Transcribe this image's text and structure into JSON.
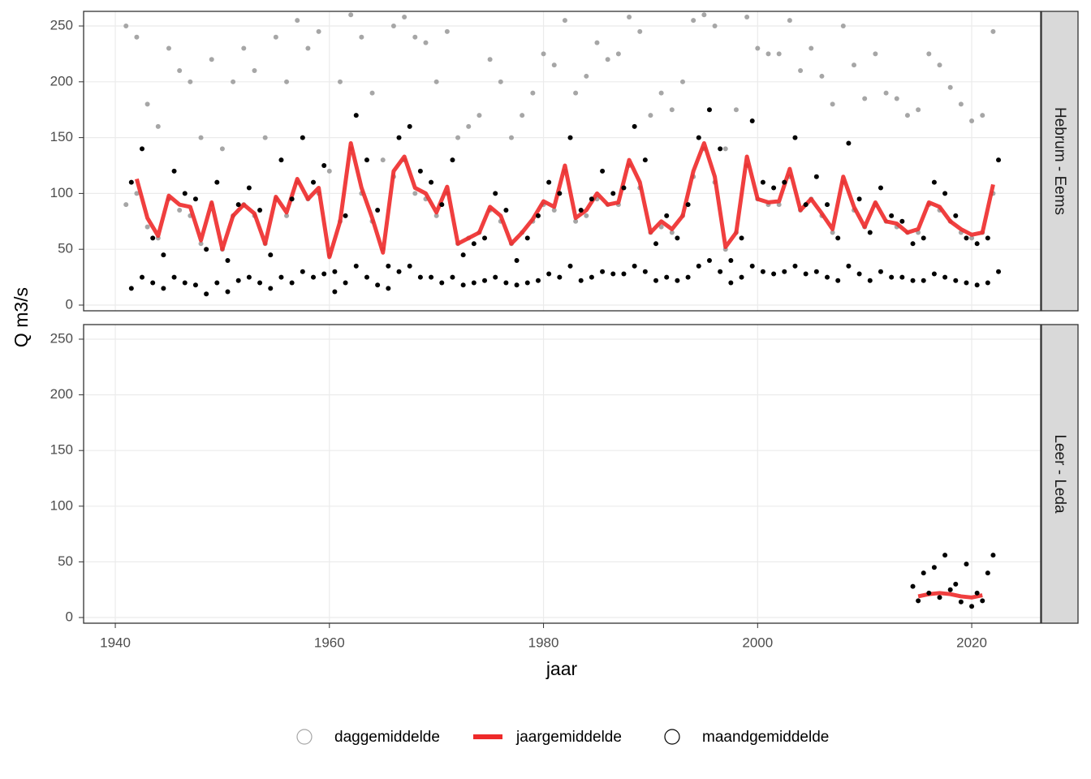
{
  "chart_data": {
    "type": "scatter",
    "xlabel": "jaar",
    "ylabel": "Q m3/s",
    "xlim": [
      1937.04,
      2026.44
    ],
    "ylim": [
      -5.1,
      263.1
    ],
    "xticks": [
      1940,
      1960,
      1980,
      2000,
      2020
    ],
    "yticks": [
      0,
      50,
      100,
      150,
      200,
      250
    ],
    "grid": true,
    "legend": "bottom",
    "series": [
      {
        "name": "daggemiddelde",
        "color": "#a6a6a6",
        "mark": "point"
      },
      {
        "name": "jaargemiddelde",
        "color": "#ee2a2a",
        "mark": "line"
      },
      {
        "name": "maandgemiddelde",
        "color": "#000000",
        "mark": "point"
      }
    ],
    "facets": [
      {
        "label": "Hebrum - Eems",
        "series": [
          {
            "x": [
              1941,
              1941,
              1942,
              1942,
              1943,
              1943,
              1944,
              1944,
              1945,
              1945,
              1946,
              1946,
              1947,
              1947,
              1948,
              1948,
              1949,
              1949,
              1950,
              1950,
              1951,
              1951,
              1952,
              1952,
              1953,
              1953,
              1954,
              1954,
              1955,
              1955,
              1956,
              1956,
              1957,
              1957,
              1958,
              1958,
              1959,
              1959,
              1960,
              1960,
              1961,
              1961,
              1962,
              1962,
              1963,
              1963,
              1964,
              1964,
              1965,
              1965,
              1966,
              1966,
              1967,
              1967,
              1968,
              1968,
              1969,
              1969,
              1970,
              1970,
              1971,
              1971,
              1972,
              1972,
              1973,
              1973,
              1974,
              1974,
              1975,
              1975,
              1976,
              1976,
              1977,
              1977,
              1978,
              1978,
              1979,
              1979,
              1980,
              1980,
              1981,
              1981,
              1982,
              1982,
              1983,
              1983,
              1984,
              1984,
              1985,
              1985,
              1986,
              1986,
              1987,
              1987,
              1988,
              1988,
              1989,
              1989,
              1990,
              1990,
              1991,
              1991,
              1992,
              1992,
              1993,
              1993,
              1994,
              1994,
              1995,
              1995,
              1996,
              1996,
              1997,
              1997,
              1998,
              1998,
              1999,
              1999,
              2000,
              2000,
              2001,
              2001,
              2002,
              2002,
              2003,
              2003,
              2004,
              2004,
              2005,
              2005,
              2006,
              2006,
              2007,
              2007,
              2008,
              2008,
              2009,
              2009,
              2010,
              2010,
              2011,
              2011,
              2012,
              2012,
              2013,
              2013,
              2014,
              2014,
              2015,
              2015,
              2016,
              2016,
              2017,
              2017,
              2018,
              2018,
              2019,
              2019,
              2020,
              2020,
              2021,
              2021,
              2022,
              2022
            ],
            "values": [
              250,
              90,
              240,
              100,
              180,
              70,
              160,
              60,
              230,
              95,
              210,
              85,
              200,
              80,
              150,
              55,
              220,
              90,
              140,
              50,
              200,
              80,
              230,
              90,
              210,
              80,
              150,
              55,
              240,
              95,
              200,
              80,
              255,
              110,
              230,
              95,
              245,
              100,
              120,
              45,
              200,
              75,
              260,
              140,
              240,
              100,
              190,
              75,
              130,
              50,
              250,
              115,
              258,
              130,
              240,
              100,
              235,
              95,
              200,
              80,
              245,
              100,
              150,
              55,
              160,
              60,
              170,
              65,
              220,
              85,
              200,
              75,
              150,
              55,
              170,
              65,
              190,
              75,
              225,
              90,
              215,
              85,
              255,
              120,
              190,
              75,
              205,
              80,
              235,
              95,
              220,
              90,
              225,
              90,
              258,
              125,
              245,
              105,
              170,
              65,
              190,
              70,
              175,
              65,
              200,
              80,
              255,
              115,
              260,
              140,
              250,
              110,
              140,
              50,
              175,
              65,
              258,
              125,
              230,
              95,
              225,
              90,
              225,
              90,
              255,
              115,
              210,
              85,
              230,
              95,
              205,
              80,
              180,
              65,
              250,
              110,
              215,
              85,
              185,
              70,
              225,
              90,
              190,
              75,
              185,
              70,
              170,
              65,
              175,
              65,
              225,
              90,
              215,
              85,
              195,
              75,
              180,
              65,
              165,
              60,
              170,
              65,
              245,
              100
            ]
          },
          {
            "x": [
              1942,
              1943,
              1944,
              1945,
              1946,
              1947,
              1948,
              1949,
              1950,
              1951,
              1952,
              1953,
              1954,
              1955,
              1956,
              1957,
              1958,
              1959,
              1960,
              1961,
              1962,
              1963,
              1964,
              1965,
              1966,
              1967,
              1968,
              1969,
              1970,
              1971,
              1972,
              1973,
              1974,
              1975,
              1976,
              1977,
              1978,
              1979,
              1980,
              1981,
              1982,
              1983,
              1984,
              1985,
              1986,
              1987,
              1988,
              1989,
              1990,
              1991,
              1992,
              1993,
              1994,
              1995,
              1996,
              1997,
              1998,
              1999,
              2000,
              2001,
              2002,
              2003,
              2004,
              2005,
              2006,
              2007,
              2008,
              2009,
              2010,
              2011,
              2012,
              2013,
              2014,
              2015,
              2016,
              2017,
              2018,
              2019,
              2020,
              2021,
              2022
            ],
            "values": [
              113,
              78,
              62,
              98,
              90,
              88,
              58,
              92,
              50,
              80,
              90,
              82,
              55,
              97,
              83,
              113,
              95,
              105,
              43,
              75,
              145,
              105,
              78,
              47,
              120,
              133,
              105,
              100,
              83,
              106,
              55,
              60,
              65,
              88,
              80,
              55,
              65,
              77,
              93,
              88,
              125,
              78,
              85,
              100,
              90,
              92,
              130,
              110,
              65,
              75,
              68,
              80,
              120,
              145,
              115,
              52,
              65,
              133,
              95,
              92,
              93,
              122,
              85,
              95,
              82,
              68,
              115,
              88,
              70,
              92,
              75,
              73,
              65,
              68,
              92,
              88,
              75,
              68,
              63,
              65,
              108
            ]
          },
          {
            "x": [
              1941.5,
              1941.5,
              1942.5,
              1942.5,
              1943.5,
              1943.5,
              1944.5,
              1944.5,
              1945.5,
              1945.5,
              1946.5,
              1946.5,
              1947.5,
              1947.5,
              1948.5,
              1948.5,
              1949.5,
              1949.5,
              1950.5,
              1950.5,
              1951.5,
              1951.5,
              1952.5,
              1952.5,
              1953.5,
              1953.5,
              1954.5,
              1954.5,
              1955.5,
              1955.5,
              1956.5,
              1956.5,
              1957.5,
              1957.5,
              1958.5,
              1958.5,
              1959.5,
              1959.5,
              1960.5,
              1960.5,
              1961.5,
              1961.5,
              1962.5,
              1962.5,
              1963.5,
              1963.5,
              1964.5,
              1964.5,
              1965.5,
              1965.5,
              1966.5,
              1966.5,
              1967.5,
              1967.5,
              1968.5,
              1968.5,
              1969.5,
              1969.5,
              1970.5,
              1970.5,
              1971.5,
              1971.5,
              1972.5,
              1972.5,
              1973.5,
              1973.5,
              1974.5,
              1974.5,
              1975.5,
              1975.5,
              1976.5,
              1976.5,
              1977.5,
              1977.5,
              1978.5,
              1978.5,
              1979.5,
              1979.5,
              1980.5,
              1980.5,
              1981.5,
              1981.5,
              1982.5,
              1982.5,
              1983.5,
              1983.5,
              1984.5,
              1984.5,
              1985.5,
              1985.5,
              1986.5,
              1986.5,
              1987.5,
              1987.5,
              1988.5,
              1988.5,
              1989.5,
              1989.5,
              1990.5,
              1990.5,
              1991.5,
              1991.5,
              1992.5,
              1992.5,
              1993.5,
              1993.5,
              1994.5,
              1994.5,
              1995.5,
              1995.5,
              1996.5,
              1996.5,
              1997.5,
              1997.5,
              1998.5,
              1998.5,
              1999.5,
              1999.5,
              2000.5,
              2000.5,
              2001.5,
              2001.5,
              2002.5,
              2002.5,
              2003.5,
              2003.5,
              2004.5,
              2004.5,
              2005.5,
              2005.5,
              2006.5,
              2006.5,
              2007.5,
              2007.5,
              2008.5,
              2008.5,
              2009.5,
              2009.5,
              2010.5,
              2010.5,
              2011.5,
              2011.5,
              2012.5,
              2012.5,
              2013.5,
              2013.5,
              2014.5,
              2014.5,
              2015.5,
              2015.5,
              2016.5,
              2016.5,
              2017.5,
              2017.5,
              2018.5,
              2018.5,
              2019.5,
              2019.5,
              2020.5,
              2020.5,
              2021.5,
              2021.5,
              2022.5,
              2022.5
            ],
            "values": [
              15,
              110,
              25,
              140,
              20,
              60,
              15,
              45,
              25,
              120,
              20,
              100,
              18,
              95,
              10,
              50,
              20,
              110,
              12,
              40,
              22,
              90,
              25,
              105,
              20,
              85,
              15,
              45,
              25,
              130,
              20,
              95,
              30,
              150,
              25,
              110,
              28,
              125,
              12,
              30,
              20,
              80,
              35,
              170,
              25,
              130,
              18,
              85,
              15,
              35,
              30,
              150,
              35,
              160,
              25,
              120,
              25,
              110,
              20,
              90,
              25,
              130,
              18,
              45,
              20,
              55,
              22,
              60,
              25,
              100,
              20,
              85,
              18,
              40,
              20,
              60,
              22,
              80,
              28,
              110,
              25,
              100,
              35,
              150,
              22,
              85,
              25,
              95,
              30,
              120,
              28,
              100,
              28,
              105,
              35,
              160,
              30,
              130,
              22,
              55,
              25,
              80,
              22,
              60,
              25,
              90,
              35,
              150,
              40,
              175,
              30,
              140,
              20,
              40,
              25,
              60,
              35,
              165,
              30,
              110,
              28,
              105,
              30,
              110,
              35,
              150,
              28,
              90,
              30,
              115,
              25,
              90,
              22,
              60,
              35,
              145,
              28,
              95,
              22,
              65,
              30,
              105,
              25,
              80,
              25,
              75,
              22,
              55,
              22,
              60,
              28,
              110,
              25,
              100,
              22,
              80,
              20,
              60,
              18,
              55,
              20,
              60,
              30,
              130
            ]
          }
        ]
      },
      {
        "label": "Leer - Leda",
        "series": [
          {
            "x": [],
            "values": []
          },
          {
            "x": [
              2015,
              2016,
              2017,
              2018,
              2019,
              2020,
              2021
            ],
            "values": [
              19,
              21,
              22,
              21,
              19,
              18,
              20
            ]
          },
          {
            "x": [
              2014.5,
              2015,
              2015.5,
              2016,
              2016.5,
              2017,
              2017.5,
              2018,
              2018.5,
              2019,
              2019.5,
              2020,
              2020.5,
              2021,
              2021.5,
              2022
            ],
            "values": [
              28,
              15,
              40,
              22,
              45,
              18,
              56,
              25,
              30,
              14,
              48,
              10,
              22,
              15,
              40,
              56
            ]
          }
        ]
      }
    ]
  }
}
